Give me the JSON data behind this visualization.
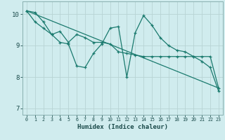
{
  "bg_color": "#d0ecee",
  "grid_color": "#b8d4d4",
  "line_color": "#1a7a6e",
  "line_width": 0.9,
  "marker": "+",
  "marker_size": 3.5,
  "marker_edge_width": 0.9,
  "line1_x": [
    0,
    1,
    2,
    3,
    4,
    5,
    6,
    7,
    8,
    9,
    10,
    11,
    12,
    13,
    14,
    15,
    16,
    17,
    18,
    19,
    20,
    21,
    22,
    23
  ],
  "line1_y": [
    10.1,
    10.05,
    9.75,
    9.35,
    9.1,
    9.05,
    8.35,
    8.3,
    8.75,
    9.05,
    9.55,
    9.6,
    8.0,
    9.4,
    9.95,
    9.65,
    9.25,
    9.0,
    8.85,
    8.8,
    8.65,
    8.5,
    8.3,
    7.55
  ],
  "line2_x": [
    0,
    1,
    2,
    3,
    4,
    5,
    6,
    7,
    8,
    9,
    10,
    11,
    12,
    13,
    14,
    15,
    16,
    17,
    18,
    19,
    20,
    21,
    22,
    23
  ],
  "line2_y": [
    10.1,
    9.75,
    9.55,
    9.35,
    9.45,
    9.1,
    9.35,
    9.25,
    9.1,
    9.1,
    9.05,
    8.8,
    8.75,
    8.7,
    8.65,
    8.65,
    8.65,
    8.65,
    8.65,
    8.65,
    8.65,
    8.65,
    8.65,
    7.65
  ],
  "line3_x": [
    0,
    23
  ],
  "line3_y": [
    10.1,
    7.65
  ],
  "xlabel": "Humidex (Indice chaleur)",
  "xlabel_fontsize": 6.5,
  "ytick_fontsize": 6.5,
  "xtick_fontsize": 4.8,
  "yticks": [
    7,
    8,
    9,
    10
  ],
  "xticks": [
    0,
    1,
    2,
    3,
    4,
    5,
    6,
    7,
    8,
    9,
    10,
    11,
    12,
    13,
    14,
    15,
    16,
    17,
    18,
    19,
    20,
    21,
    22,
    23
  ],
  "xlim": [
    -0.5,
    23.5
  ],
  "ylim": [
    6.8,
    10.4
  ]
}
